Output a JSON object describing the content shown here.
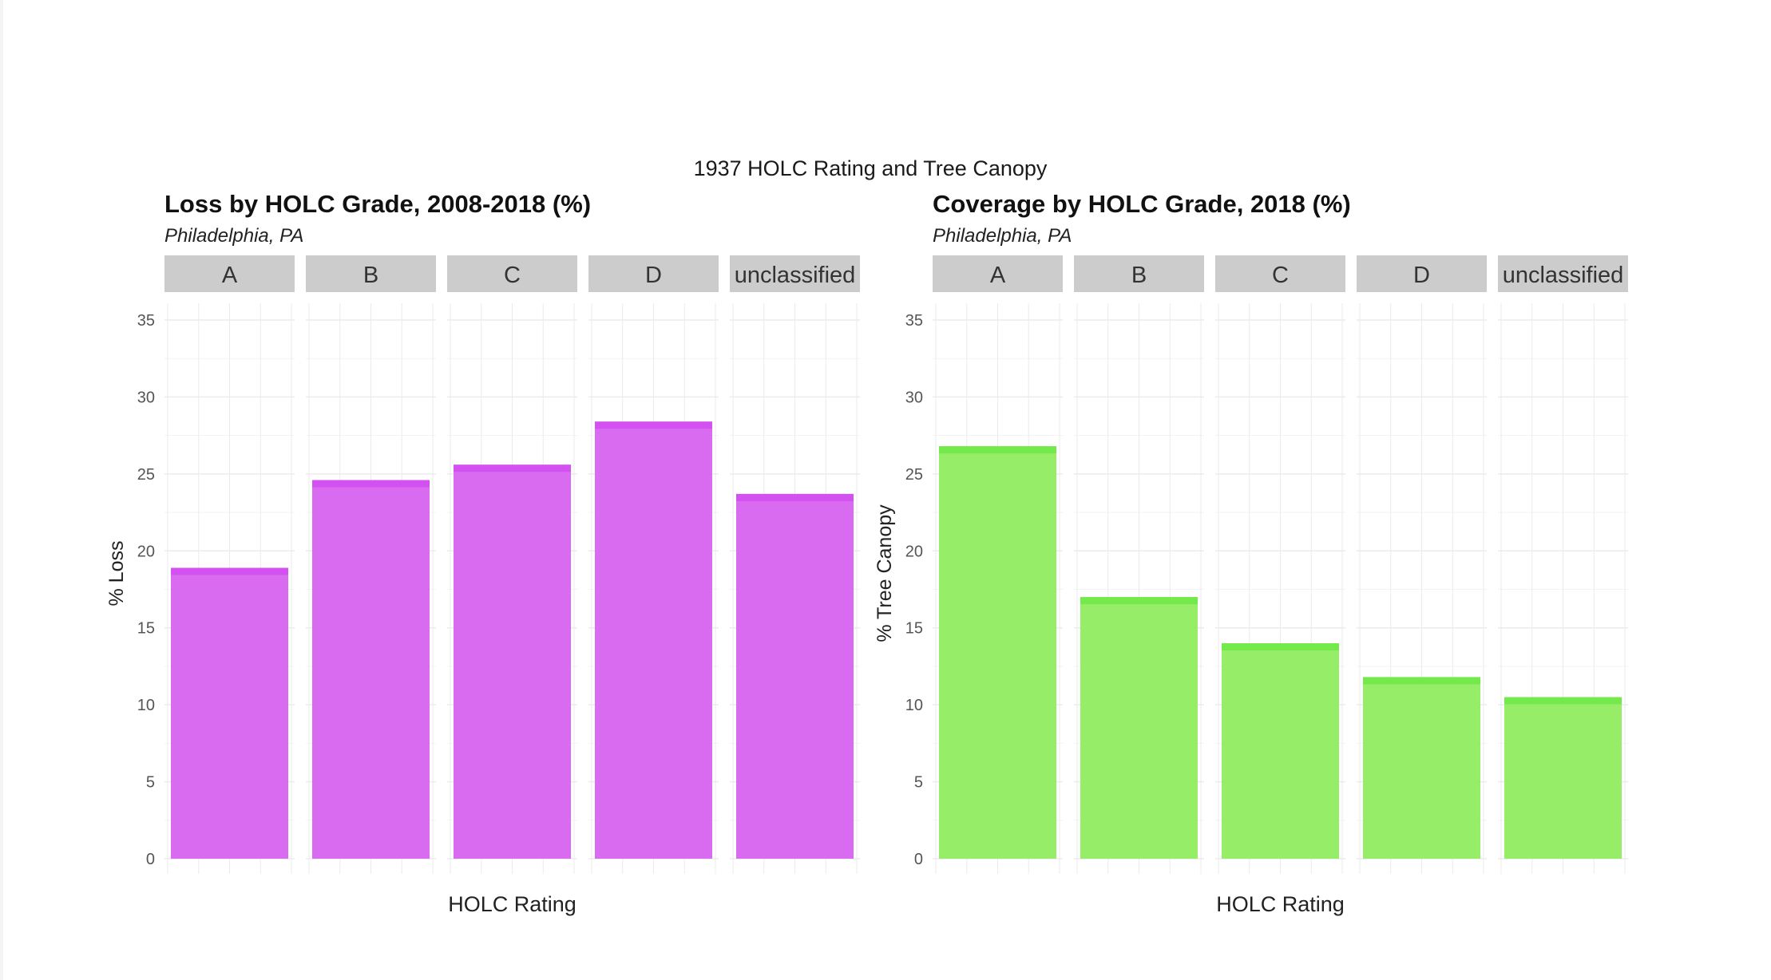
{
  "figure": {
    "title": "1937 HOLC Rating and Tree Canopy"
  },
  "colors": {
    "loss_bar": "#d86bef",
    "loss_bar_top": "#d24cf0",
    "canopy_bar": "#96ed68",
    "canopy_bar_top": "#6ee846",
    "strip_bg": "#cccccc",
    "grid": "#ebebeb"
  },
  "chart_data": [
    {
      "type": "bar",
      "title": "Loss by HOLC Grade, 2008-2018 (%)",
      "subtitle": "Philadelphia, PA",
      "xlabel": "HOLC Rating",
      "ylabel": "% Loss",
      "facets": [
        "A",
        "B",
        "C",
        "D",
        "unclassified"
      ],
      "values": [
        18.9,
        24.6,
        25.6,
        28.4,
        23.7
      ],
      "yticks": [
        0,
        5,
        10,
        15,
        20,
        25,
        30,
        35
      ],
      "ylim": [
        0,
        35
      ],
      "grid": true,
      "legend": "none"
    },
    {
      "type": "bar",
      "title": "Coverage by HOLC Grade, 2018 (%)",
      "subtitle": "Philadelphia, PA",
      "xlabel": "HOLC Rating",
      "ylabel": "% Tree Canopy",
      "facets": [
        "A",
        "B",
        "C",
        "D",
        "unclassified"
      ],
      "values": [
        26.8,
        17.0,
        14.0,
        11.8,
        10.5
      ],
      "yticks": [
        0,
        5,
        10,
        15,
        20,
        25,
        30,
        35
      ],
      "ylim": [
        0,
        35
      ],
      "grid": true,
      "legend": "none"
    }
  ]
}
